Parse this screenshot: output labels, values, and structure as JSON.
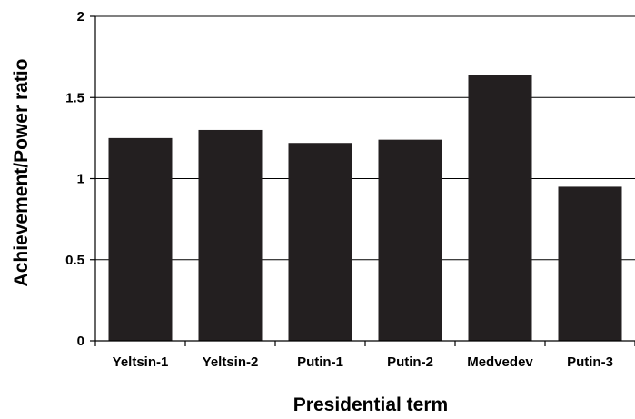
{
  "chart_data": {
    "type": "bar",
    "categories": [
      "Yeltsin-1",
      "Yeltsin-2",
      "Putin-1",
      "Putin-2",
      "Medvedev",
      "Putin-3"
    ],
    "values": [
      1.25,
      1.3,
      1.22,
      1.24,
      1.64,
      0.95
    ],
    "xlabel": "Presidential term",
    "ylabel": "Achievement/Power ratio",
    "ylim": [
      0,
      2
    ],
    "yticks": [
      0,
      0.5,
      1,
      1.5,
      2
    ],
    "ytick_labels": [
      "0",
      "0.5",
      "1",
      "1.5",
      "2"
    ],
    "grid": true,
    "legend": "none",
    "bar_color": "#231f20",
    "grid_color": "#000000"
  }
}
